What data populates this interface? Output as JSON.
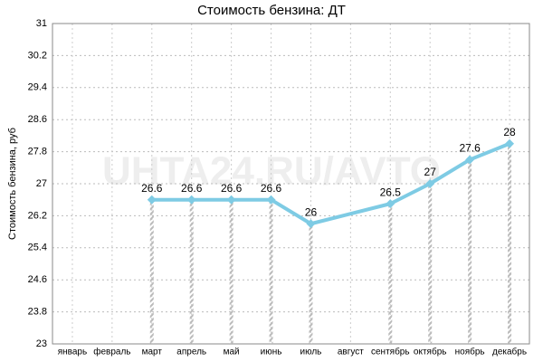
{
  "chart_data": {
    "type": "line",
    "title": "Стоимость бензина: ДТ",
    "y_label": "Стоимость бензина, руб",
    "watermark": "UHTA24.RU/AVTO",
    "categories": [
      "январь",
      "февраль",
      "март",
      "апрель",
      "май",
      "июнь",
      "июль",
      "август",
      "сентябрь",
      "октябрь",
      "ноябрь",
      "декабрь"
    ],
    "series": [
      {
        "name": "ДТ",
        "color": "#7ecbe4",
        "values": [
          null,
          null,
          26.6,
          26.6,
          26.6,
          26.6,
          26,
          null,
          26.5,
          27,
          27.6,
          28
        ]
      }
    ],
    "ylim": [
      23,
      31
    ],
    "yticks": [
      23,
      23.8,
      24.6,
      25.4,
      26.2,
      27,
      27.8,
      28.6,
      29.4,
      30.2,
      31
    ],
    "grid": true,
    "connect_gaps": true,
    "drop_lines": true
  }
}
